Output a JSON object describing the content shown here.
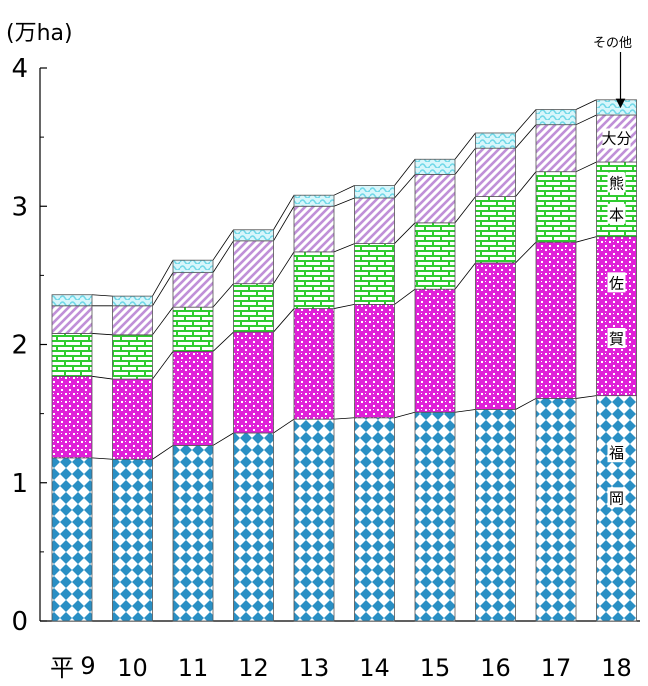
{
  "chart_data": {
    "type": "bar",
    "stacked": true,
    "unit_label": "(万ha)",
    "era_prefix": "平",
    "categories": [
      "9",
      "10",
      "11",
      "12",
      "13",
      "14",
      "15",
      "16",
      "17",
      "18"
    ],
    "ylim": [
      0,
      4
    ],
    "yticks": [
      "0",
      "1",
      "2",
      "3",
      "4"
    ],
    "series": [
      {
        "name": "福岡",
        "values": [
          1.18,
          1.17,
          1.27,
          1.36,
          1.46,
          1.47,
          1.51,
          1.53,
          1.61,
          1.63
        ],
        "color": "#2a8fc4"
      },
      {
        "name": "佐賀",
        "values": [
          0.59,
          0.58,
          0.68,
          0.73,
          0.8,
          0.82,
          0.89,
          1.06,
          1.13,
          1.15
        ],
        "color": "#e020d8"
      },
      {
        "name": "熊本",
        "values": [
          0.31,
          0.32,
          0.32,
          0.35,
          0.41,
          0.44,
          0.48,
          0.48,
          0.51,
          0.54
        ],
        "color": "#30cc30"
      },
      {
        "name": "大分",
        "values": [
          0.2,
          0.21,
          0.25,
          0.31,
          0.33,
          0.33,
          0.35,
          0.35,
          0.34,
          0.34
        ],
        "color": "#c090d8"
      },
      {
        "name": "その他",
        "values": [
          0.08,
          0.07,
          0.09,
          0.08,
          0.08,
          0.09,
          0.11,
          0.11,
          0.11,
          0.11
        ],
        "color": "#70d8e8"
      }
    ],
    "segment_labels": {
      "fukuoka": [
        "福",
        "岡"
      ],
      "saga": [
        "佐",
        "賀"
      ],
      "kumamoto": [
        "熊",
        "本"
      ],
      "oita": "大分",
      "other": "その他"
    }
  }
}
